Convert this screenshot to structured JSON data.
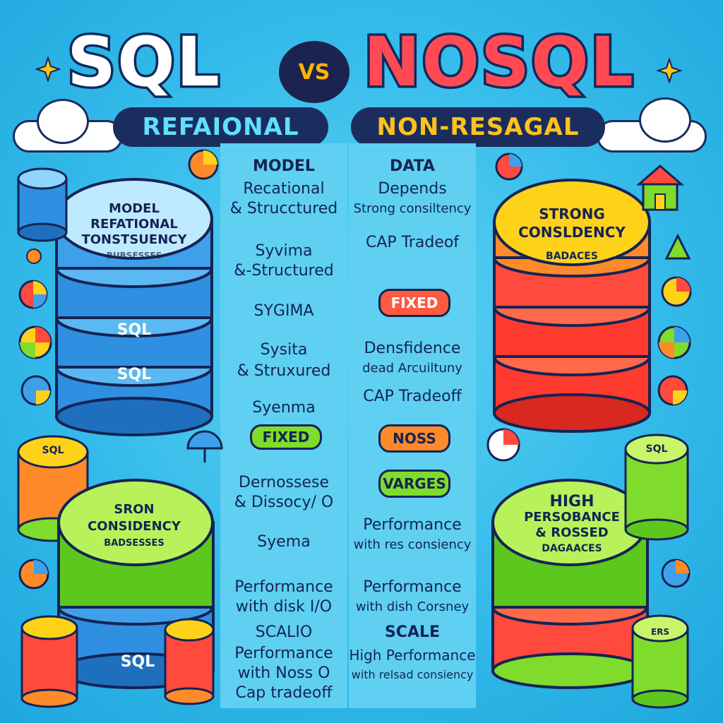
{
  "header": {
    "left_title": "SQL",
    "vs": "VS",
    "right_title": "NOSQL",
    "left_subtitle": "REFAIONAL",
    "right_subtitle": "NON-RESAGAL"
  },
  "left_column": {
    "items": [
      {
        "text": "MODEL"
      },
      {
        "text": "Recational"
      },
      {
        "text": "& Strucctured"
      },
      {
        "text": "Syvima"
      },
      {
        "text": "&-Structured"
      },
      {
        "text": "SYGIMA"
      },
      {
        "text": "Sysita"
      },
      {
        "text": "& Struxured"
      },
      {
        "text": "Syenma"
      },
      {
        "text": "FIXED"
      },
      {
        "text": "Dernossese"
      },
      {
        "text": "& Dissocy/ O"
      },
      {
        "text": "Syema"
      },
      {
        "text": "Performance"
      },
      {
        "text": "with disk I/O"
      },
      {
        "text": "SCALIO"
      },
      {
        "text": "Performance"
      },
      {
        "text": "with Noss O"
      },
      {
        "text": "Cap tradeoff"
      }
    ]
  },
  "right_column": {
    "items": [
      {
        "text": "DATA"
      },
      {
        "text": "Depends"
      },
      {
        "text": "Strong consiltency"
      },
      {
        "text": "CAP Tradeof"
      },
      {
        "text": "FIXED"
      },
      {
        "text": "Densfidence"
      },
      {
        "text": "dead Arcuiltuny"
      },
      {
        "text": "CAP Tradeoff"
      },
      {
        "text": "NOSS"
      },
      {
        "text": "VARGES"
      },
      {
        "text": "Performance"
      },
      {
        "text": "with res consiency"
      },
      {
        "text": "Performance"
      },
      {
        "text": "with dish Corsney"
      },
      {
        "text": "SCALE"
      },
      {
        "text": "High Performance"
      },
      {
        "text": "with relsad consiency"
      }
    ]
  },
  "left_disks": {
    "top_label": [
      "MODEL",
      "REFATIONAL",
      "TONSTSUENCY",
      "BUBSESSES"
    ],
    "band_label_1": "SQL",
    "band_label_2": "SQL",
    "green_label": [
      "SRON",
      "CONSIDENCY",
      "BADSESSES"
    ],
    "small_label_top": "SQL",
    "bottom_band": "SQL"
  },
  "right_disks": {
    "top_label": [
      "STRONG",
      "CONSLDENCY",
      "BADACES"
    ],
    "green_label": [
      "HIGH",
      "PERSOBANCE",
      "& ROSSED",
      "DAGAACES"
    ],
    "small_label_top": "SQL",
    "small_label_bottom": "ERS"
  },
  "colors": {
    "background": "#34bbea",
    "column": "#5fd0f2",
    "navy": "#142454",
    "blue_disk": "#2f8fe0",
    "red_disk": "#ff4a3d",
    "green_disk": "#7fdc2c",
    "yellow": "#ffd21a"
  }
}
